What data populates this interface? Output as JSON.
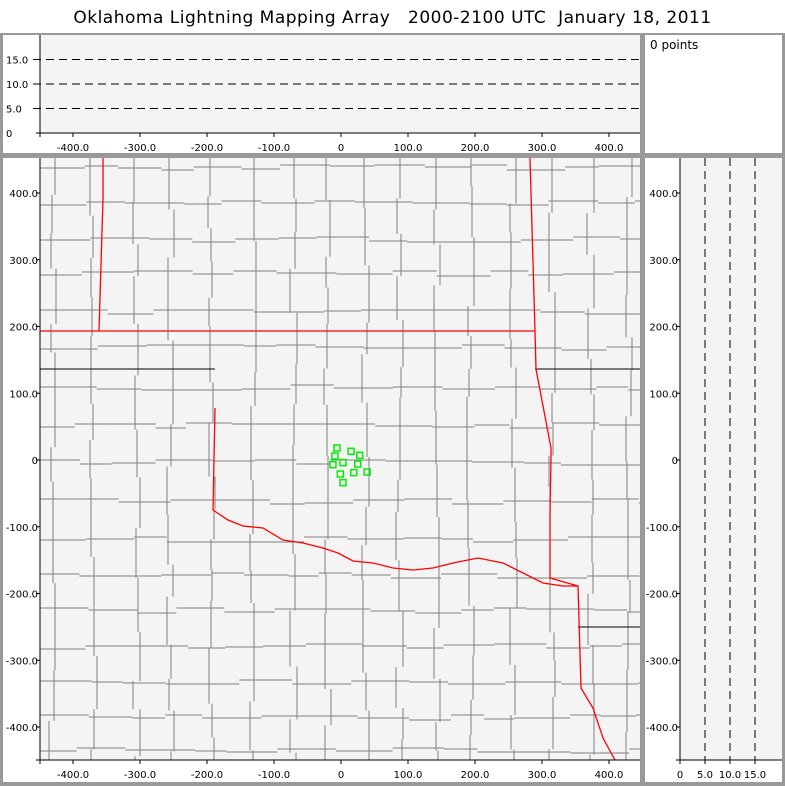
{
  "title": "Oklahoma Lightning Mapping Array   2000-2100 UTC  January 18, 2011",
  "points_label": "0 points",
  "x_ticks": [
    "-400.0",
    "-300.0",
    "-200.0",
    "-100.0",
    "0",
    "100.0",
    "200.0",
    "300.0",
    "400.0"
  ],
  "x_tick_values": [
    -400,
    -300,
    -200,
    -100,
    0,
    100,
    200,
    300,
    400
  ],
  "y_ticks": [
    "400.0",
    "300.0",
    "200.0",
    "100.0",
    "0",
    "-100.0",
    "-200.0",
    "-300.0",
    "-400.0"
  ],
  "y_tick_values": [
    400,
    300,
    200,
    100,
    0,
    -100,
    -200,
    -300,
    -400
  ],
  "alt_ticks": [
    "0",
    "5.0",
    "10.0",
    "15.0"
  ],
  "alt_tick_values": [
    0,
    5,
    10,
    15
  ],
  "colors": {
    "state_border": "#ff0000",
    "county_border": "#808080",
    "station": "#00ee00",
    "plot_bg": "#f4f4f4",
    "frame": "#999999"
  },
  "stations_km": [
    [
      -6,
      18
    ],
    [
      -9,
      6
    ],
    [
      15,
      13
    ],
    [
      28,
      7
    ],
    [
      -12,
      -7
    ],
    [
      3,
      -4
    ],
    [
      25,
      -6
    ],
    [
      -1,
      -21
    ],
    [
      19,
      -19
    ],
    [
      39,
      -18
    ],
    [
      3,
      -34
    ]
  ]
}
